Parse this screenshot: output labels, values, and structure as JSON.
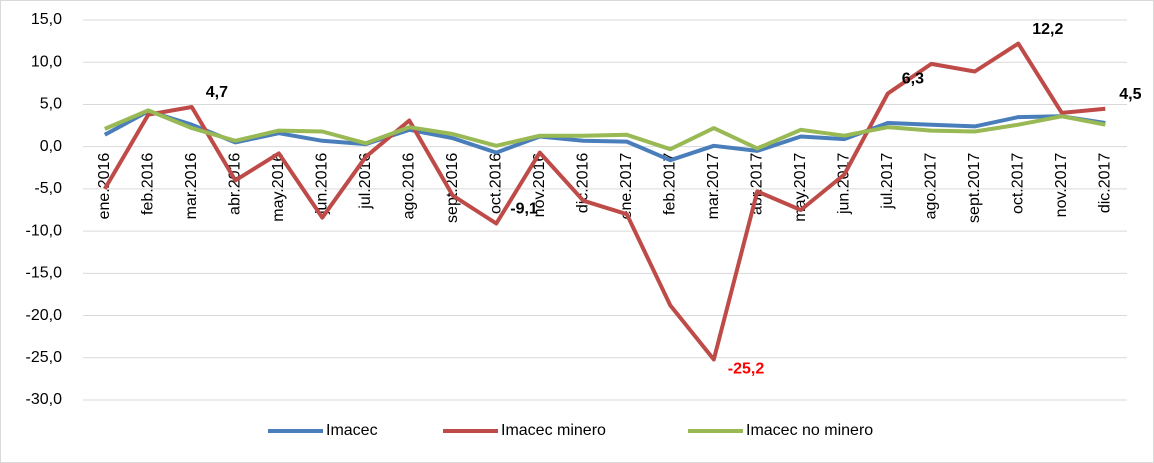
{
  "chart_data": {
    "type": "line",
    "categories": [
      "ene.2016",
      "feb.2016",
      "mar.2016",
      "abr.2016",
      "may.2016",
      "jun.2016",
      "jul.2016",
      "ago.2016",
      "sept.2016",
      "oct.2016",
      "nov.2016",
      "dic.2016",
      "ene.2017",
      "feb.2017",
      "mar.2017",
      "abr.2017",
      "may.2017",
      "jun.2017",
      "jul.2017",
      "ago.2017",
      "sept.2017",
      "oct.2017",
      "nov.2017",
      "dic.2017"
    ],
    "series": [
      {
        "name": "Imacec",
        "color": "#4a7ebb",
        "values": [
          1.4,
          4.2,
          2.6,
          0.5,
          1.6,
          0.7,
          0.3,
          2.0,
          1.0,
          -0.7,
          1.2,
          0.7,
          0.6,
          -1.6,
          0.1,
          -0.5,
          1.2,
          0.9,
          2.8,
          2.6,
          2.4,
          3.5,
          3.6,
          2.8
        ]
      },
      {
        "name": "Imacec minero",
        "color": "#be4b48",
        "values": [
          -5.0,
          3.8,
          4.7,
          -4.0,
          -0.8,
          -8.4,
          -1.2,
          3.1,
          -5.8,
          -9.1,
          -0.7,
          -6.4,
          -8.0,
          -18.8,
          -25.2,
          -5.3,
          -7.5,
          -3.3,
          6.3,
          9.8,
          8.9,
          12.2,
          4.0,
          4.5
        ],
        "value_labels": [
          null,
          null,
          "4,7",
          null,
          null,
          null,
          null,
          null,
          null,
          "-9,1",
          null,
          null,
          null,
          null,
          "-25,2",
          null,
          null,
          null,
          "6,3",
          null,
          null,
          "12,2",
          null,
          "4,5"
        ],
        "value_label_colors": [
          null,
          null,
          "#000000",
          null,
          null,
          null,
          null,
          null,
          null,
          "#000000",
          null,
          null,
          null,
          null,
          "#ff0000",
          null,
          null,
          null,
          "#000000",
          null,
          null,
          "#000000",
          null,
          "#000000"
        ]
      },
      {
        "name": "Imacec no minero",
        "color": "#98b954",
        "values": [
          2.1,
          4.3,
          2.2,
          0.7,
          1.9,
          1.8,
          0.4,
          2.3,
          1.5,
          0.1,
          1.3,
          1.3,
          1.4,
          -0.3,
          2.2,
          -0.2,
          2.0,
          1.3,
          2.3,
          1.9,
          1.8,
          2.6,
          3.6,
          2.6
        ]
      }
    ],
    "ylim": [
      -30,
      15
    ],
    "yticks": [
      {
        "value": -30,
        "label": "-30,0"
      },
      {
        "value": -25,
        "label": "-25,0"
      },
      {
        "value": -20,
        "label": "-20,0"
      },
      {
        "value": -15,
        "label": "-15,0"
      },
      {
        "value": -10,
        "label": "-10,0"
      },
      {
        "value": -5,
        "label": "-5,0"
      },
      {
        "value": 0,
        "label": "0,0"
      },
      {
        "value": 5,
        "label": "5,0"
      },
      {
        "value": 10,
        "label": "10,0"
      },
      {
        "value": 15,
        "label": "15,0"
      }
    ],
    "grid": true,
    "legend": "bottom"
  }
}
